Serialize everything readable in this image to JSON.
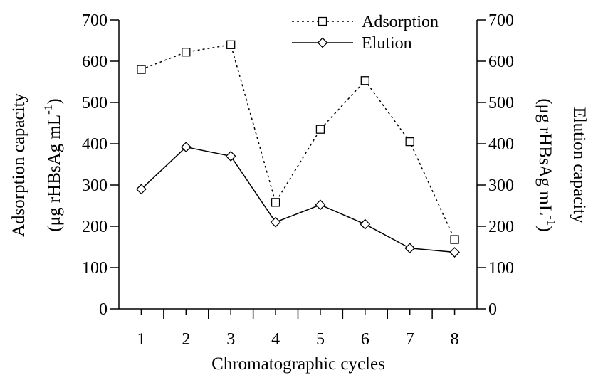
{
  "chart_data": {
    "type": "line",
    "categories": [
      "1",
      "2",
      "3",
      "4",
      "5",
      "6",
      "7",
      "8"
    ],
    "x": [
      1,
      2,
      3,
      4,
      5,
      6,
      7,
      8
    ],
    "series": [
      {
        "name": "Adsorption",
        "axis": "left",
        "marker": "square",
        "line_style": "dotted",
        "values": [
          580,
          622,
          640,
          258,
          435,
          553,
          405,
          168
        ]
      },
      {
        "name": "Elution",
        "axis": "right",
        "marker": "diamond",
        "line_style": "solid",
        "values": [
          290,
          392,
          370,
          210,
          252,
          205,
          147,
          137
        ]
      }
    ],
    "xlabel": "Chromatographic cycles",
    "ylabel_left": [
      "Adsorption capacity",
      "(μg rHBsAg mL",
      "-1",
      ")"
    ],
    "ylabel_right": [
      "Elution capacity",
      "(μg rHBsAg mL",
      "-1",
      ")"
    ],
    "ylim": [
      0,
      700
    ],
    "yticks": [
      "0",
      "100",
      "200",
      "300",
      "400",
      "500",
      "600",
      "700"
    ],
    "xticks": [
      "1",
      "2",
      "3",
      "4",
      "5",
      "6",
      "7",
      "8"
    ],
    "grid": false,
    "legend_position": "top-right",
    "colors": {
      "line": "#000000",
      "background": "#ffffff"
    }
  }
}
